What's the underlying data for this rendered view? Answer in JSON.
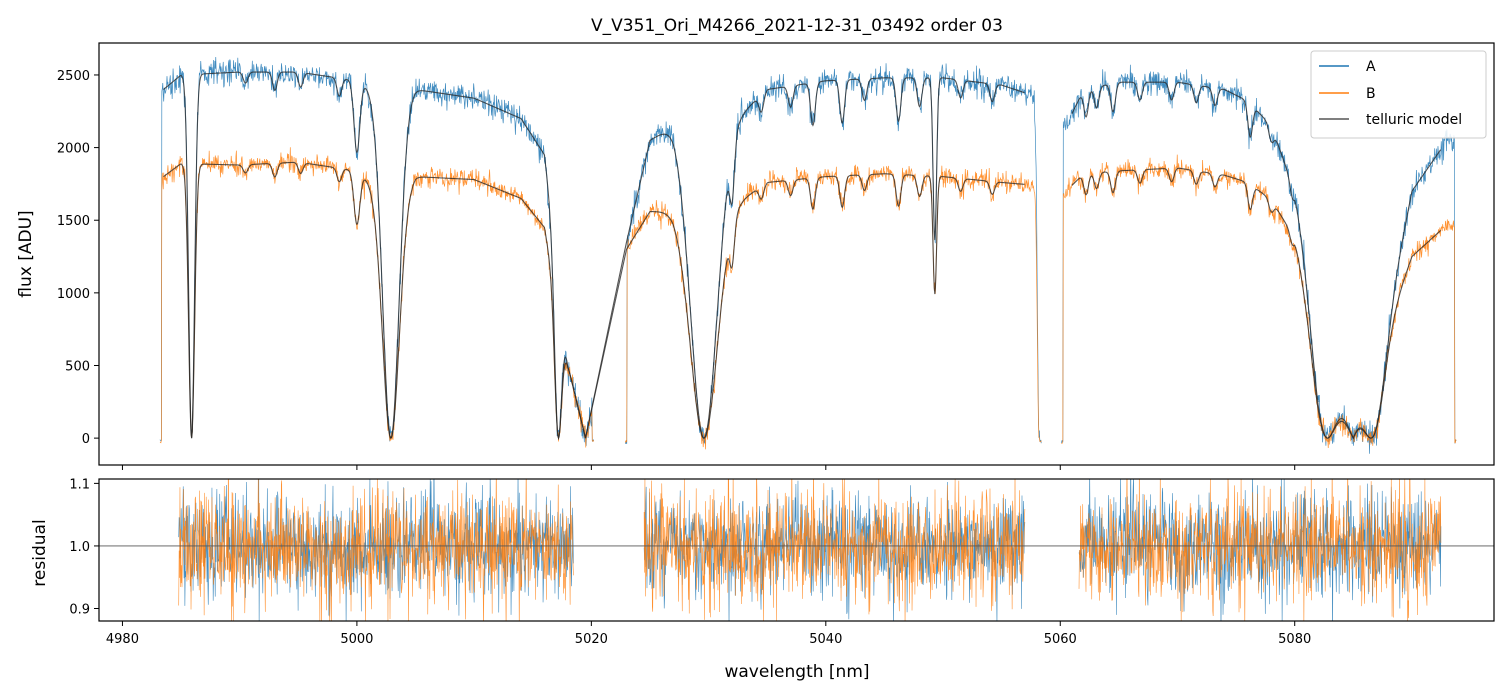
{
  "title": "V_V351_Ori_M4266_2021-12-31_03492  order 03",
  "chart_data": [
    {
      "type": "line",
      "panel": "flux",
      "xlabel": "wavelength [nm]",
      "ylabel": "flux [ADU]",
      "xlim": [
        4978,
        5097
      ],
      "ylim": [
        -185,
        2720
      ],
      "yticks": [
        0,
        500,
        1000,
        1500,
        2000,
        2500
      ],
      "xticks": [
        4980,
        5000,
        5020,
        5040,
        5060,
        5080
      ],
      "legend": {
        "placement": "top-right",
        "entries": [
          {
            "label": "A",
            "color": "#1f77b4"
          },
          {
            "label": "B",
            "color": "#ff7f0e"
          },
          {
            "label": "telluric model",
            "color": "#555555"
          }
        ]
      },
      "segments": [
        {
          "xrange": [
            4983.2,
            5020.2
          ],
          "dropouts": [
            4983.2,
            5020.2
          ]
        },
        {
          "xrange": [
            5022.9,
            5058.4
          ],
          "dropouts": [
            5022.9,
            5058.4
          ]
        },
        {
          "xrange": [
            5060.1,
            5093.8
          ],
          "dropouts": [
            5060.1,
            5093.8
          ]
        }
      ],
      "series": [
        {
          "name": "A",
          "color": "#1f77b4",
          "noise": 55,
          "continuum": [
            [
              4983.5,
              2400
            ],
            [
              4985,
              2500
            ],
            [
              4990,
              2520
            ],
            [
              4995,
              2520
            ],
            [
              5000,
              2460
            ],
            [
              5003,
              2350
            ],
            [
              5005,
              2400
            ],
            [
              5010,
              2340
            ],
            [
              5014,
              2200
            ],
            [
              5016,
              1950
            ],
            [
              5018,
              500
            ],
            [
              5019.5,
              0
            ],
            [
              5023,
              1350
            ],
            [
              5025,
              2050
            ],
            [
              5027,
              2150
            ],
            [
              5028,
              2100
            ],
            [
              5030,
              2020
            ],
            [
              5033,
              2250
            ],
            [
              5035,
              2400
            ],
            [
              5040,
              2460
            ],
            [
              5045,
              2480
            ],
            [
              5050,
              2480
            ],
            [
              5055,
              2430
            ],
            [
              5058,
              2350
            ],
            [
              5060.5,
              2150
            ],
            [
              5062,
              2400
            ],
            [
              5065,
              2450
            ],
            [
              5070,
              2450
            ],
            [
              5074,
              2400
            ],
            [
              5076,
              2320
            ],
            [
              5078,
              2150
            ],
            [
              5080,
              1700
            ],
            [
              5082,
              700
            ],
            [
              5085,
              0
            ],
            [
              5088,
              900
            ],
            [
              5090,
              1700
            ],
            [
              5093,
              2050
            ]
          ],
          "model_segments": [
            [
              4983.5,
              5057
            ],
            [
              5061,
              5092.5
            ]
          ],
          "lines": [
            {
              "x": 4985.9,
              "depth": 1.0,
              "w": 0.25
            },
            {
              "x": 4990.5,
              "depth": 0.03,
              "w": 0.2
            },
            {
              "x": 4993.0,
              "depth": 0.05,
              "w": 0.2
            },
            {
              "x": 4995.2,
              "depth": 0.04,
              "w": 0.2
            },
            {
              "x": 4998.5,
              "depth": 0.05,
              "w": 0.2
            },
            {
              "x": 5000.0,
              "depth": 0.2,
              "w": 0.25
            },
            {
              "x": 5002.9,
              "depth": 1.0,
              "w": 0.7
            },
            {
              "x": 5017.2,
              "depth": 1.0,
              "w": 0.3
            },
            {
              "x": 5029.6,
              "depth": 1.0,
              "w": 1.1
            },
            {
              "x": 5032.0,
              "depth": 0.18,
              "w": 0.2
            },
            {
              "x": 5034.5,
              "depth": 0.05,
              "w": 0.2
            },
            {
              "x": 5037.0,
              "depth": 0.06,
              "w": 0.2
            },
            {
              "x": 5038.9,
              "depth": 0.12,
              "w": 0.2
            },
            {
              "x": 5041.4,
              "depth": 0.12,
              "w": 0.2
            },
            {
              "x": 5043.3,
              "depth": 0.06,
              "w": 0.2
            },
            {
              "x": 5046.2,
              "depth": 0.12,
              "w": 0.2
            },
            {
              "x": 5048.0,
              "depth": 0.08,
              "w": 0.2
            },
            {
              "x": 5049.3,
              "depth": 0.45,
              "w": 0.15
            },
            {
              "x": 5051.5,
              "depth": 0.05,
              "w": 0.2
            },
            {
              "x": 5054.2,
              "depth": 0.05,
              "w": 0.2
            },
            {
              "x": 5058.2,
              "depth": 1.0,
              "w": 0.15
            },
            {
              "x": 5062.2,
              "depth": 0.08,
              "w": 0.2
            },
            {
              "x": 5063.1,
              "depth": 0.06,
              "w": 0.2
            },
            {
              "x": 5064.5,
              "depth": 0.08,
              "w": 0.2
            },
            {
              "x": 5066.8,
              "depth": 0.05,
              "w": 0.2
            },
            {
              "x": 5069.5,
              "depth": 0.05,
              "w": 0.2
            },
            {
              "x": 5071.6,
              "depth": 0.05,
              "w": 0.2
            },
            {
              "x": 5073.2,
              "depth": 0.05,
              "w": 0.2
            },
            {
              "x": 5076.2,
              "depth": 0.1,
              "w": 0.2
            },
            {
              "x": 5078.0,
              "depth": 0.05,
              "w": 0.2
            },
            {
              "x": 5079.8,
              "depth": 0.05,
              "w": 0.2
            },
            {
              "x": 5082.8,
              "depth": 1.0,
              "w": 0.9
            },
            {
              "x": 5086.5,
              "depth": 1.0,
              "w": 0.9
            }
          ]
        },
        {
          "name": "B",
          "color": "#ff7f0e",
          "noise": 42,
          "continuum": [
            [
              4983.5,
              1800
            ],
            [
              4985,
              1890
            ],
            [
              4990,
              1880
            ],
            [
              4995,
              1900
            ],
            [
              5000,
              1840
            ],
            [
              5003,
              1650
            ],
            [
              5005,
              1800
            ],
            [
              5010,
              1780
            ],
            [
              5014,
              1650
            ],
            [
              5016,
              1450
            ],
            [
              5018,
              500
            ],
            [
              5019.5,
              0
            ],
            [
              5023,
              1300
            ],
            [
              5025,
              1560
            ],
            [
              5027,
              1560
            ],
            [
              5028,
              1500
            ],
            [
              5030,
              1450
            ],
            [
              5033,
              1650
            ],
            [
              5035,
              1760
            ],
            [
              5040,
              1800
            ],
            [
              5045,
              1820
            ],
            [
              5050,
              1800
            ],
            [
              5055,
              1760
            ],
            [
              5058,
              1740
            ],
            [
              5060.5,
              1700
            ],
            [
              5062,
              1820
            ],
            [
              5065,
              1840
            ],
            [
              5070,
              1860
            ],
            [
              5074,
              1810
            ],
            [
              5076,
              1760
            ],
            [
              5078,
              1640
            ],
            [
              5080,
              1380
            ],
            [
              5082,
              600
            ],
            [
              5085,
              0
            ],
            [
              5088,
              800
            ],
            [
              5090,
              1250
            ],
            [
              5093,
              1470
            ]
          ],
          "lines": [
            {
              "x": 4985.9,
              "depth": 1.0,
              "w": 0.25
            },
            {
              "x": 4990.5,
              "depth": 0.03,
              "w": 0.2
            },
            {
              "x": 4993.0,
              "depth": 0.05,
              "w": 0.2
            },
            {
              "x": 4995.2,
              "depth": 0.04,
              "w": 0.2
            },
            {
              "x": 4998.5,
              "depth": 0.05,
              "w": 0.2
            },
            {
              "x": 5000.0,
              "depth": 0.2,
              "w": 0.25
            },
            {
              "x": 5002.9,
              "depth": 1.0,
              "w": 0.7
            },
            {
              "x": 5017.2,
              "depth": 1.0,
              "w": 0.3
            },
            {
              "x": 5029.6,
              "depth": 1.0,
              "w": 1.1
            },
            {
              "x": 5032.0,
              "depth": 0.18,
              "w": 0.2
            },
            {
              "x": 5034.5,
              "depth": 0.05,
              "w": 0.2
            },
            {
              "x": 5037.0,
              "depth": 0.06,
              "w": 0.2
            },
            {
              "x": 5038.9,
              "depth": 0.12,
              "w": 0.2
            },
            {
              "x": 5041.4,
              "depth": 0.12,
              "w": 0.2
            },
            {
              "x": 5043.3,
              "depth": 0.06,
              "w": 0.2
            },
            {
              "x": 5046.2,
              "depth": 0.12,
              "w": 0.2
            },
            {
              "x": 5048.0,
              "depth": 0.08,
              "w": 0.2
            },
            {
              "x": 5049.3,
              "depth": 0.45,
              "w": 0.15
            },
            {
              "x": 5051.5,
              "depth": 0.05,
              "w": 0.2
            },
            {
              "x": 5054.2,
              "depth": 0.05,
              "w": 0.2
            },
            {
              "x": 5058.2,
              "depth": 1.0,
              "w": 0.15
            },
            {
              "x": 5062.2,
              "depth": 0.08,
              "w": 0.2
            },
            {
              "x": 5063.1,
              "depth": 0.06,
              "w": 0.2
            },
            {
              "x": 5064.5,
              "depth": 0.08,
              "w": 0.2
            },
            {
              "x": 5066.8,
              "depth": 0.05,
              "w": 0.2
            },
            {
              "x": 5069.5,
              "depth": 0.05,
              "w": 0.2
            },
            {
              "x": 5071.6,
              "depth": 0.05,
              "w": 0.2
            },
            {
              "x": 5073.2,
              "depth": 0.05,
              "w": 0.2
            },
            {
              "x": 5076.2,
              "depth": 0.1,
              "w": 0.2
            },
            {
              "x": 5078.0,
              "depth": 0.05,
              "w": 0.2
            },
            {
              "x": 5079.8,
              "depth": 0.05,
              "w": 0.2
            },
            {
              "x": 5082.8,
              "depth": 1.0,
              "w": 0.9
            },
            {
              "x": 5086.5,
              "depth": 1.0,
              "w": 0.9
            }
          ]
        }
      ]
    },
    {
      "type": "line",
      "panel": "residual",
      "xlabel": "wavelength [nm]",
      "ylabel": "residual",
      "xlim": [
        4978,
        5097
      ],
      "ylim": [
        0.88,
        1.107
      ],
      "yticks": [
        0.9,
        1.0,
        1.1
      ],
      "ytick_labels": [
        "0.9",
        "1.0",
        "1.1"
      ],
      "xticks": [
        4980,
        5000,
        5020,
        5040,
        5060,
        5080
      ],
      "reference_line": 1.0,
      "segments": [
        [
          4984.8,
          5018.5
        ],
        [
          5024.5,
          5057
        ],
        [
          5061.6,
          5092.5
        ]
      ],
      "series": [
        {
          "name": "A",
          "color": "#1f77b4",
          "scatter_sigma": 0.04
        },
        {
          "name": "B",
          "color": "#ff7f0e",
          "scatter_sigma": 0.045
        }
      ]
    }
  ]
}
